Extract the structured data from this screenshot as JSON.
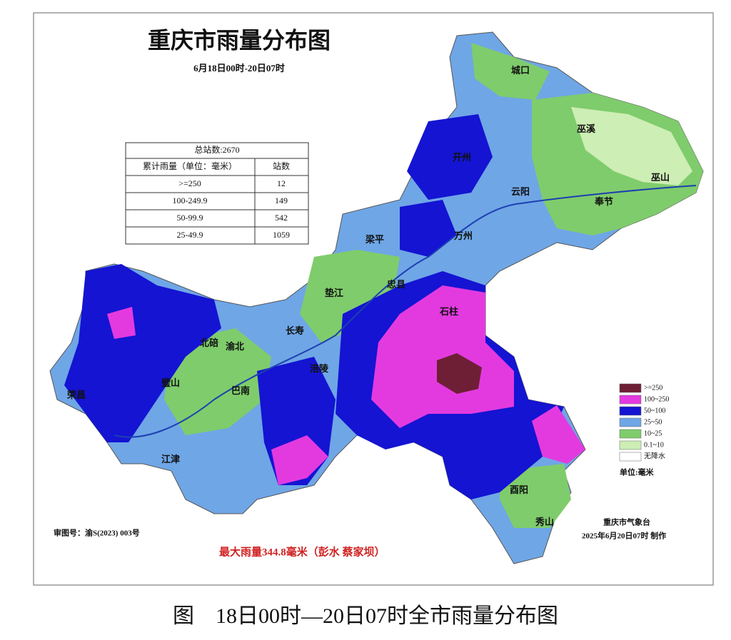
{
  "header": {
    "title": "重庆市雨量分布图",
    "subtitle": "6月18日00时-20日07时"
  },
  "table": {
    "title": "总站数:2670",
    "columns": [
      "累计雨量（单位：毫米）",
      "站数"
    ],
    "rows": [
      [
        ">=250",
        12
      ],
      [
        "100-249.9",
        149
      ],
      [
        "50-99.9",
        542
      ],
      [
        "25-49.9",
        1059
      ]
    ]
  },
  "legend": {
    "items": [
      {
        "label": ">=250",
        "color": "#6e1f35"
      },
      {
        "label": "100~250",
        "color": "#e33ae0"
      },
      {
        "label": "50~100",
        "color": "#1414d2"
      },
      {
        "label": "25~50",
        "color": "#6fa6e6"
      },
      {
        "label": "10~25",
        "color": "#7fcc6c"
      },
      {
        "label": "0.1~10",
        "color": "#cdeeb4"
      },
      {
        "label": "无降水",
        "color": "#ffffff"
      }
    ],
    "unit": "单位:毫米"
  },
  "places": [
    {
      "label": "城口"
    },
    {
      "label": "巫溪"
    },
    {
      "label": "巫山"
    },
    {
      "label": "奉节"
    },
    {
      "label": "云阳"
    },
    {
      "label": "开州"
    },
    {
      "label": "万州"
    },
    {
      "label": "梁平"
    },
    {
      "label": "忠县"
    },
    {
      "label": "垫江"
    },
    {
      "label": "长寿"
    },
    {
      "label": "石柱"
    },
    {
      "label": "渝北"
    },
    {
      "label": "北碚"
    },
    {
      "label": "涪陵"
    },
    {
      "label": "巴南"
    },
    {
      "label": "江津"
    },
    {
      "label": "荣昌"
    },
    {
      "label": "璧山"
    },
    {
      "label": "酉阳"
    },
    {
      "label": "秀山"
    }
  ],
  "footer": {
    "max_rain": "最大雨量344.8毫米（彭水 蔡家坝）",
    "map_number": "审图号：渝S(2023) 003号",
    "producer": "重庆市气象台",
    "time": "2025年6月20日07时 制作"
  },
  "caption": "图　18日00时—20日07时全市雨量分布图"
}
